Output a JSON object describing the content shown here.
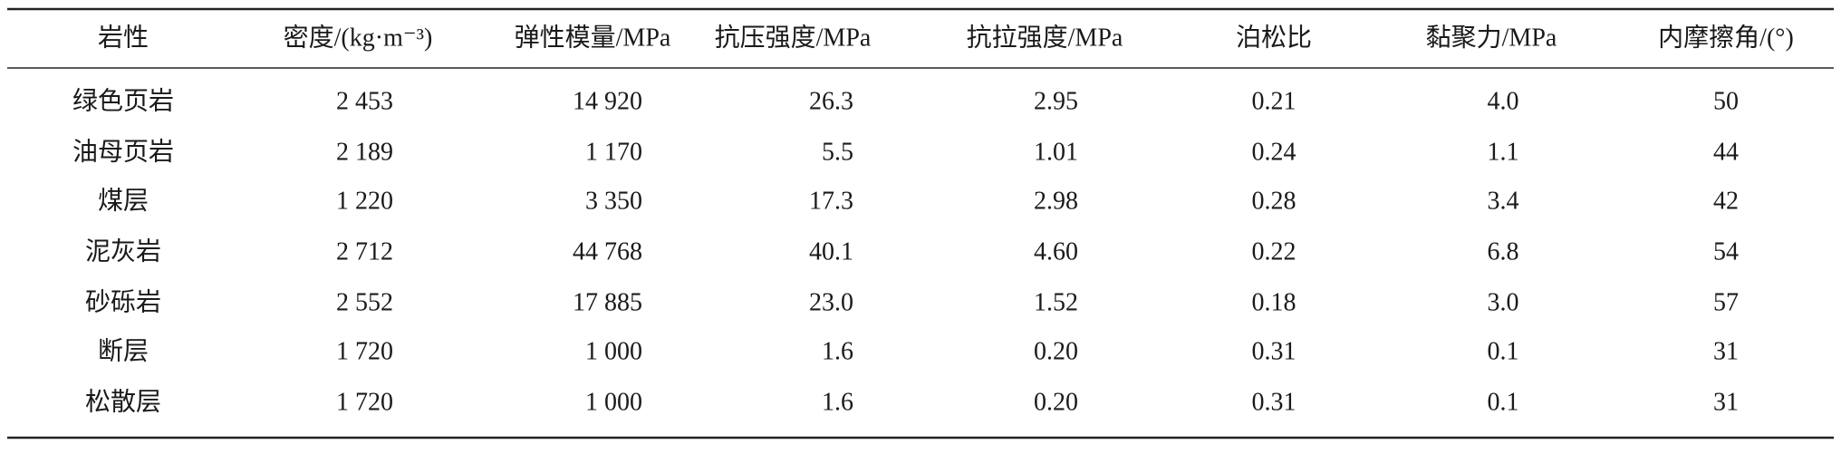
{
  "table": {
    "headers": [
      "岩性",
      "密度/(kg·m⁻³)",
      "弹性模量/MPa",
      "抗压强度/MPa",
      "抗拉强度/MPa",
      "泊松比",
      "黏聚力/MPa",
      "内摩擦角/(°)"
    ],
    "rows": [
      [
        "绿色页岩",
        "2 453",
        "14 920",
        "26.3",
        "2.95",
        "0.21",
        "4.0",
        "50"
      ],
      [
        "油母页岩",
        "2 189",
        "1 170",
        "5.5",
        "1.01",
        "0.24",
        "1.1",
        "44"
      ],
      [
        "煤层",
        "1 220",
        "3 350",
        "17.3",
        "2.98",
        "0.28",
        "3.4",
        "42"
      ],
      [
        "泥灰岩",
        "2 712",
        "44 768",
        "40.1",
        "4.60",
        "0.22",
        "6.8",
        "54"
      ],
      [
        "砂砾岩",
        "2 552",
        "17 885",
        "23.0",
        "1.52",
        "0.18",
        "3.0",
        "57"
      ],
      [
        "断层",
        "1 720",
        "1 000",
        "1.6",
        "0.20",
        "0.31",
        "0.1",
        "31"
      ],
      [
        "松散层",
        "1 720",
        "1 000",
        "1.6",
        "0.20",
        "0.31",
        "0.1",
        "31"
      ]
    ]
  }
}
